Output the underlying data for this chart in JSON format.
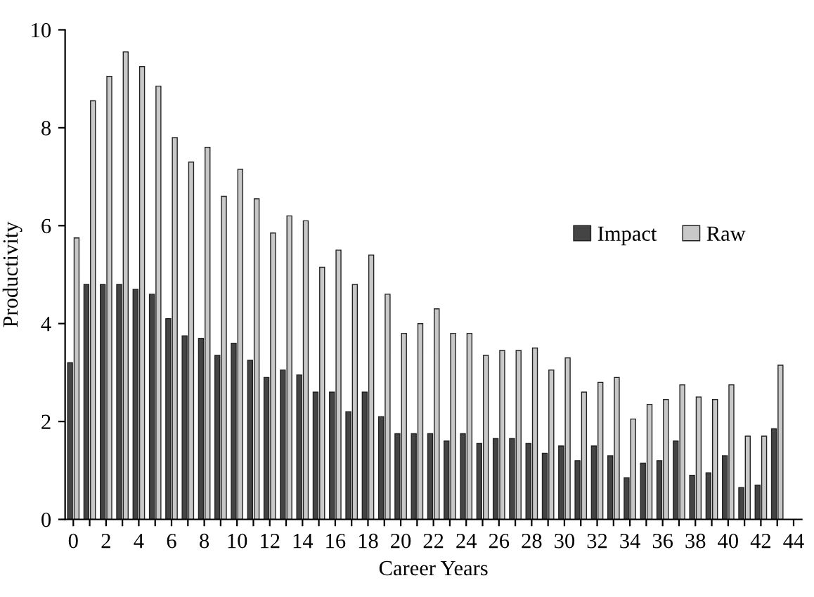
{
  "chart_data": {
    "type": "bar",
    "xlabel": "Career Years",
    "ylabel": "Productivity",
    "categories": [
      "0",
      null,
      "2",
      null,
      "4",
      null,
      "6",
      null,
      "8",
      null,
      "10",
      null,
      "12",
      null,
      "14",
      null,
      "16",
      null,
      "18",
      null,
      "20",
      null,
      "22",
      null,
      "24",
      null,
      "26",
      null,
      "28",
      null,
      "30",
      null,
      "32",
      null,
      "34",
      null,
      "36",
      null,
      "38",
      null,
      "40",
      null,
      "42",
      null,
      "44"
    ],
    "series": [
      {
        "name": "Impact",
        "color": "#444444",
        "values": [
          3.2,
          4.8,
          4.8,
          4.8,
          4.7,
          4.6,
          4.1,
          3.75,
          3.7,
          3.35,
          3.6,
          3.25,
          2.9,
          3.05,
          2.95,
          2.6,
          2.6,
          2.2,
          2.6,
          2.1,
          1.75,
          1.75,
          1.75,
          1.6,
          1.75,
          1.55,
          1.65,
          1.65,
          1.55,
          1.35,
          1.5,
          1.2,
          1.5,
          1.3,
          0.85,
          1.15,
          1.2,
          1.6,
          0.9,
          0.95,
          1.3,
          0.65,
          0.7,
          1.85,
          null
        ]
      },
      {
        "name": "Raw",
        "color": "#c8c8c8",
        "values": [
          5.75,
          8.55,
          9.05,
          9.55,
          9.25,
          8.85,
          7.8,
          7.3,
          7.6,
          6.6,
          7.15,
          6.55,
          5.85,
          6.2,
          6.1,
          5.15,
          5.5,
          4.8,
          5.4,
          4.6,
          3.8,
          4.0,
          4.3,
          3.8,
          3.8,
          3.35,
          3.45,
          3.45,
          3.5,
          3.05,
          3.3,
          2.6,
          2.8,
          2.9,
          2.05,
          2.35,
          2.45,
          2.75,
          2.5,
          2.45,
          2.75,
          1.7,
          1.7,
          3.15,
          null
        ]
      }
    ],
    "ylim": [
      0,
      10
    ],
    "yticks": [
      0,
      2,
      4,
      6,
      8,
      10
    ],
    "grid": false,
    "legend": "right"
  }
}
